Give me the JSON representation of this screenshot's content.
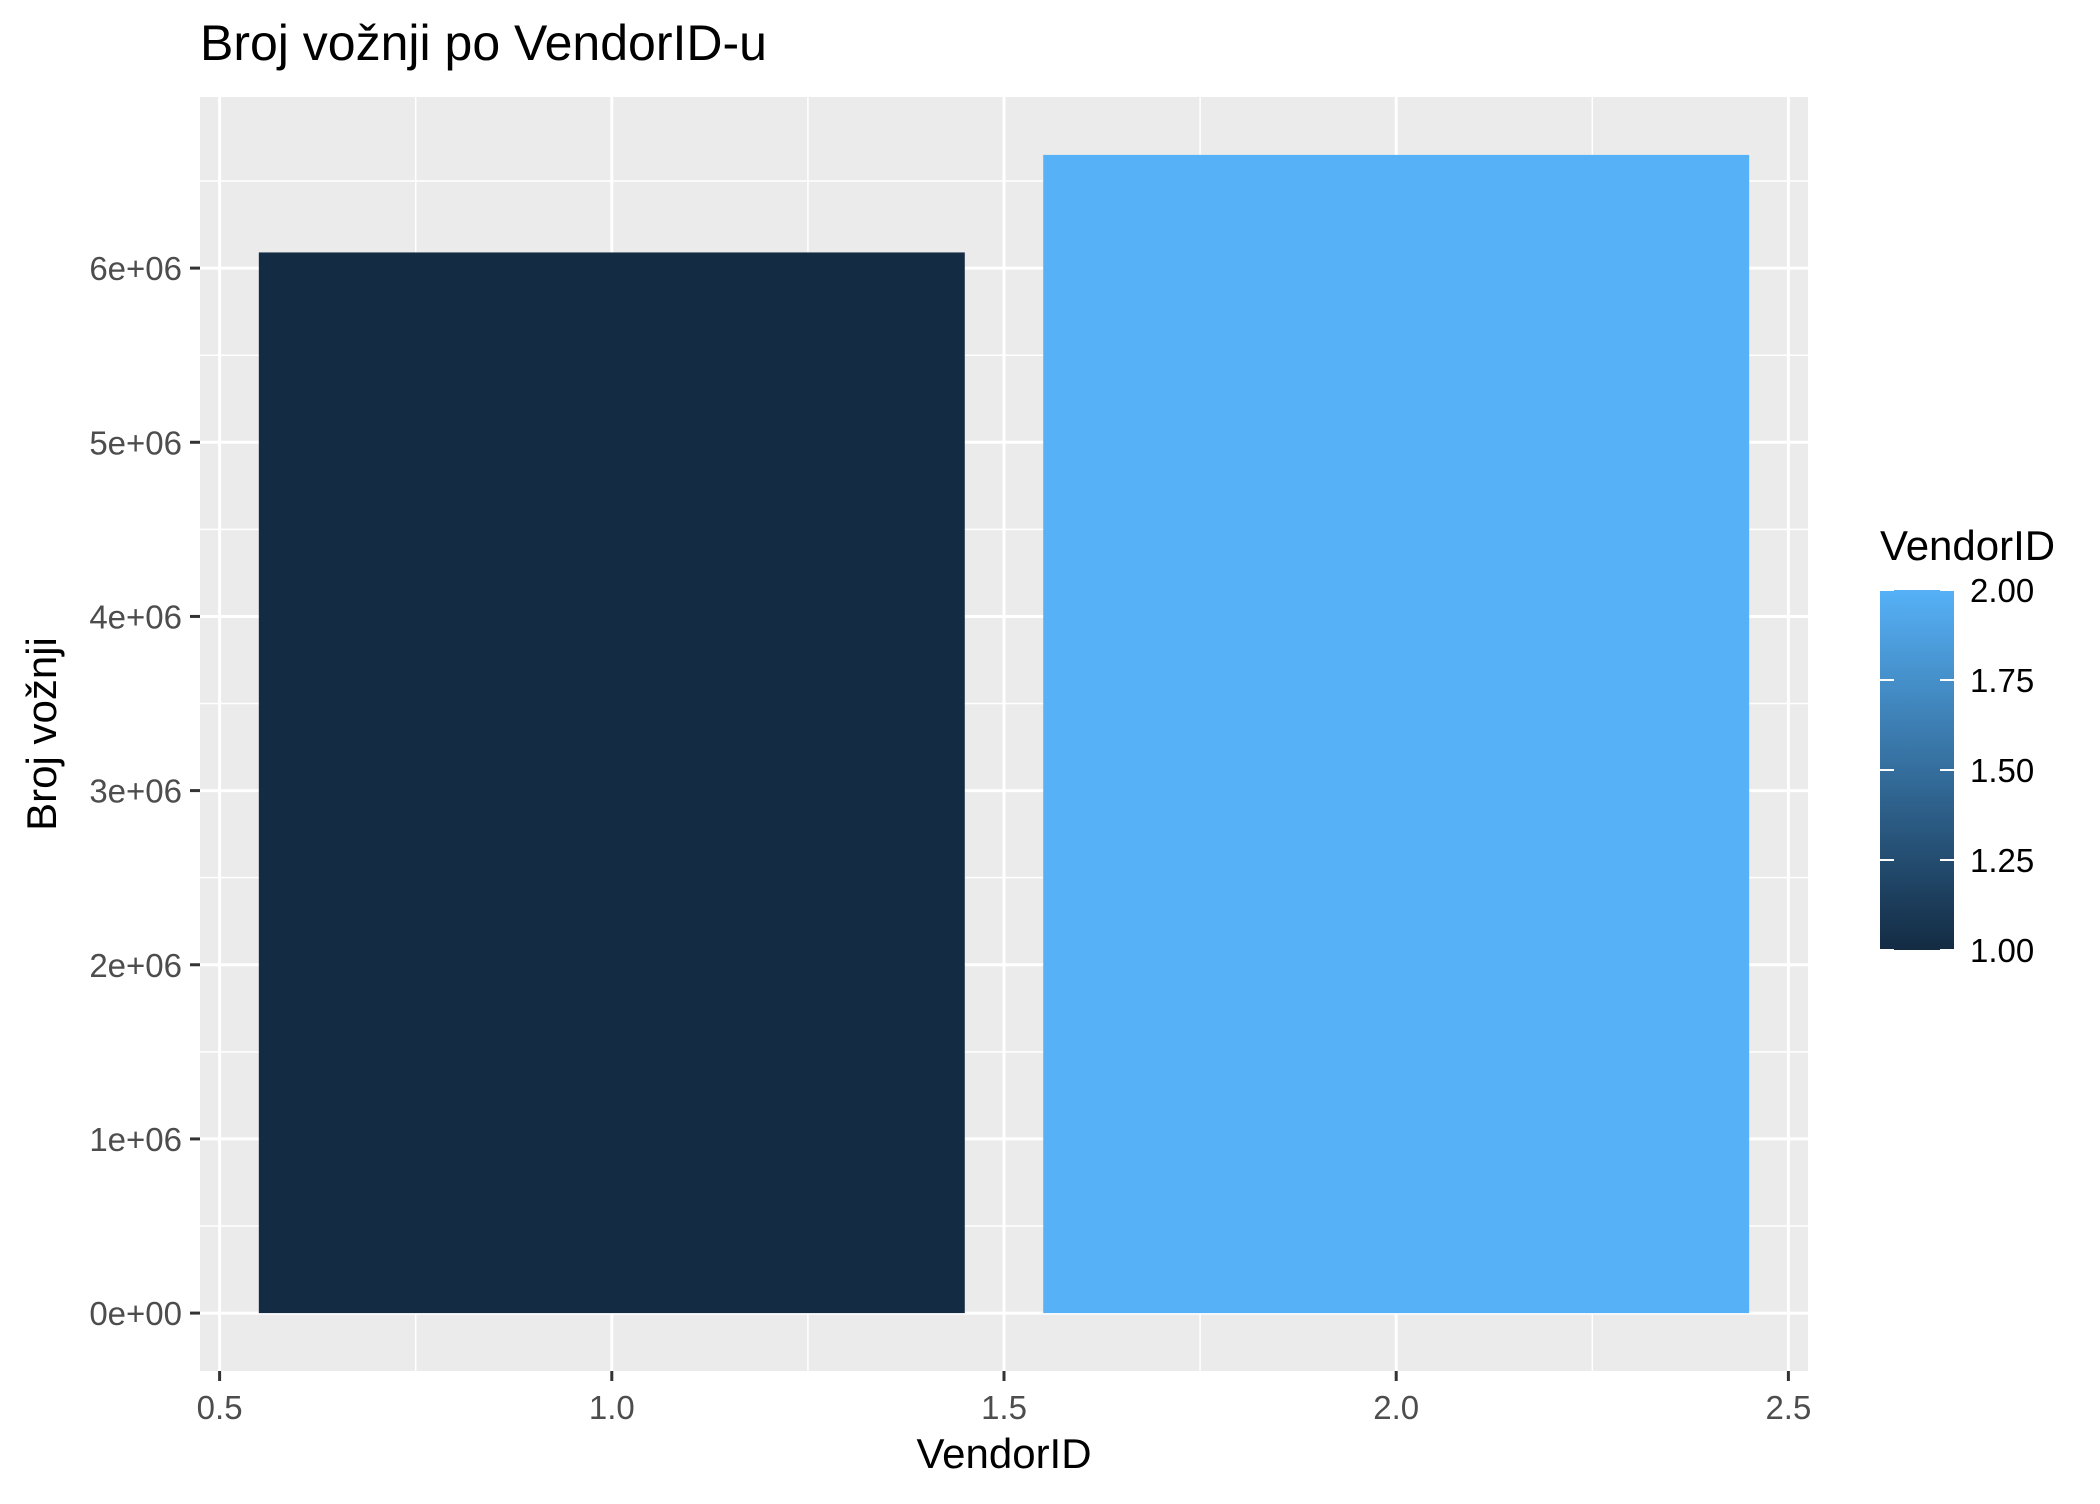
{
  "chart_data": {
    "type": "bar",
    "title": "Broj vožnji po VendorID-u",
    "xlabel": "VendorID",
    "ylabel": "Broj vožnji",
    "x": [
      1,
      2
    ],
    "values": [
      6090000,
      6650000
    ],
    "bar_width": 0.9,
    "xlim": [
      0.5,
      2.5
    ],
    "ylim": [
      0,
      6650000
    ],
    "xticks": [
      0.5,
      1.0,
      1.5,
      2.0,
      2.5
    ],
    "xtick_labels": [
      "0.5",
      "1.0",
      "1.5",
      "2.0",
      "2.5"
    ],
    "yticks": [
      0,
      1000000,
      2000000,
      3000000,
      4000000,
      5000000,
      6000000
    ],
    "ytick_labels": [
      "0e+00",
      "1e+06",
      "2e+06",
      "3e+06",
      "4e+06",
      "5e+06",
      "6e+06"
    ],
    "grid": true,
    "legend": {
      "title": "VendorID",
      "placement": "right",
      "type": "colorbar",
      "range": [
        1.0,
        2.0
      ],
      "ticks": [
        1.0,
        1.25,
        1.5,
        1.75,
        2.0
      ],
      "tick_labels": [
        "1.00",
        "1.25",
        "1.50",
        "1.75",
        "2.00"
      ]
    },
    "colors": {
      "low": "#132B43",
      "high": "#56B1F7",
      "panel_background": "#EBEBEB",
      "grid": "#FFFFFF"
    }
  }
}
